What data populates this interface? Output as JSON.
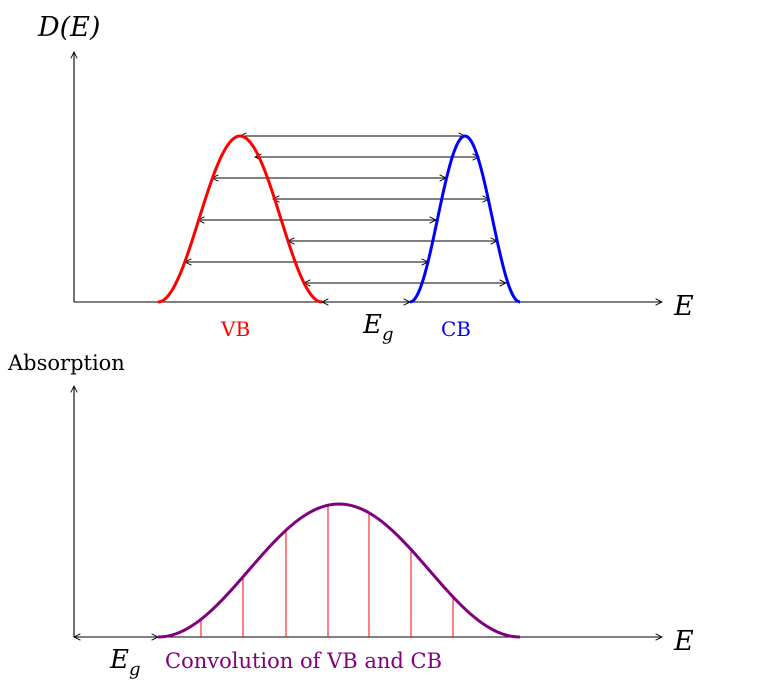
{
  "top_panel": {
    "y_axis_label": "D(E)",
    "x_axis_label": "E",
    "vb_label": "VB",
    "cb_label": "CB",
    "gap_label_main": "E",
    "gap_label_sub": "g",
    "colors": {
      "vb": "#ff0000",
      "cb": "#0000ff",
      "axis": "#000000",
      "arrow": "#000000"
    },
    "arrow_count": 8
  },
  "bottom_panel": {
    "y_axis_label": "Absorption",
    "x_axis_label": "E",
    "gap_label_main": "E",
    "gap_label_sub": "g",
    "caption": "Convolution of VB and CB",
    "colors": {
      "curve": "#800080",
      "ticks": "#ff0000",
      "caption": "#800080",
      "axis": "#000000"
    },
    "tick_count": 7
  }
}
